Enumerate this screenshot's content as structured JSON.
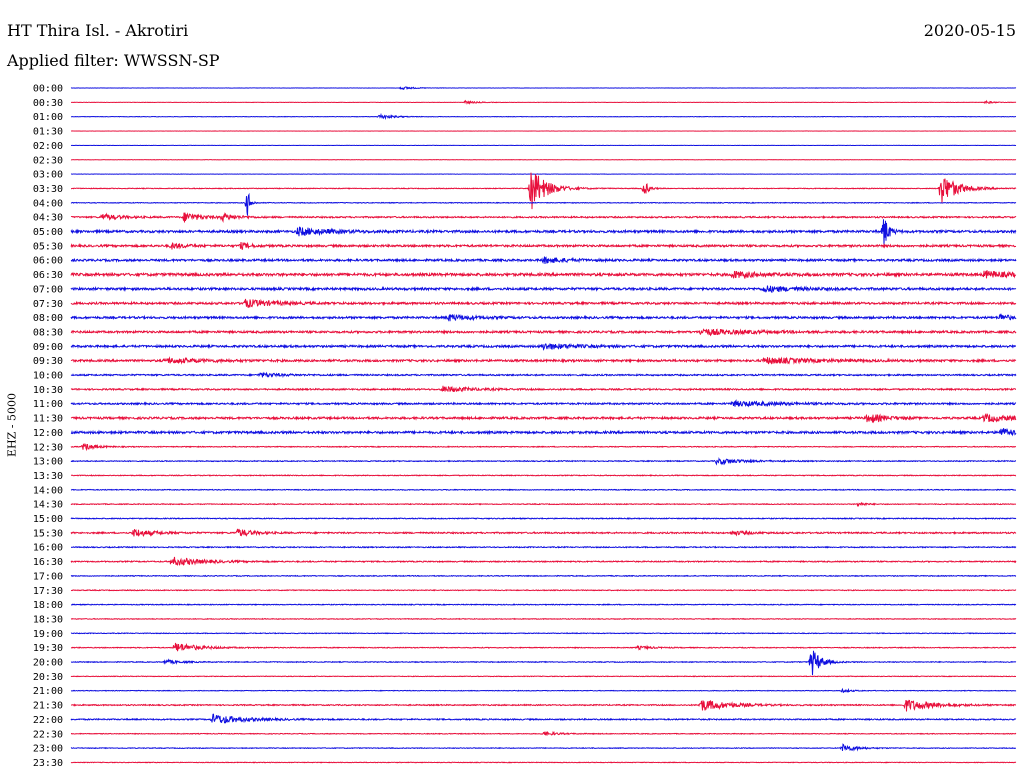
{
  "header": {
    "station": "HT Thira Isl. - Akrotiri",
    "date": "2020-05-15",
    "filter": "Applied filter: WWSSN-SP",
    "channel": "EHZ - 5000"
  },
  "colors": {
    "blue": "#1010e0",
    "red": "#e8103c",
    "background": "#ffffff"
  },
  "chart_data": {
    "type": "line",
    "title": "HT Thira Isl. - Akrotiri",
    "ylabel": "EHZ - 5000",
    "grid": false,
    "legend": "none",
    "xlim": [
      0,
      30
    ],
    "x_unit": "minutes",
    "series": [
      {
        "time": "00:00",
        "color": "blue",
        "noise": 0.15,
        "events": [
          {
            "t": 10.5,
            "amp": 1.5,
            "dur": 0.8
          }
        ]
      },
      {
        "time": "00:30",
        "color": "red",
        "noise": 0.15,
        "events": [
          {
            "t": 12.5,
            "amp": 1.5,
            "dur": 0.8
          },
          {
            "t": 29.0,
            "amp": 1.5,
            "dur": 0.6
          }
        ]
      },
      {
        "time": "01:00",
        "color": "blue",
        "noise": 0.2,
        "events": [
          {
            "t": 9.8,
            "amp": 2.5,
            "dur": 0.9
          }
        ]
      },
      {
        "time": "01:30",
        "color": "red",
        "noise": 0.12,
        "events": []
      },
      {
        "time": "02:00",
        "color": "blue",
        "noise": 0.12,
        "events": []
      },
      {
        "time": "02:30",
        "color": "red",
        "noise": 0.15,
        "events": []
      },
      {
        "time": "03:00",
        "color": "blue",
        "noise": 0.15,
        "events": []
      },
      {
        "time": "03:30",
        "color": "red",
        "noise": 0.35,
        "events": [
          {
            "t": 14.6,
            "amp": 22,
            "dur": 1.0
          },
          {
            "t": 18.2,
            "amp": 8,
            "dur": 0.3
          },
          {
            "t": 27.6,
            "amp": 16,
            "dur": 1.1
          }
        ]
      },
      {
        "time": "04:00",
        "color": "blue",
        "noise": 0.35,
        "events": [
          {
            "t": 5.6,
            "amp": 14,
            "dur": 0.2
          }
        ]
      },
      {
        "time": "04:30",
        "color": "red",
        "noise": 0.7,
        "events": [
          {
            "t": 1.0,
            "amp": 3,
            "dur": 1.2
          },
          {
            "t": 3.6,
            "amp": 5,
            "dur": 1.0
          },
          {
            "t": 4.8,
            "amp": 3.5,
            "dur": 0.9
          }
        ]
      },
      {
        "time": "05:00",
        "color": "blue",
        "noise": 1.1,
        "events": [
          {
            "t": 7.2,
            "amp": 4,
            "dur": 2.0
          },
          {
            "t": 25.8,
            "amp": 18,
            "dur": 0.3
          }
        ]
      },
      {
        "time": "05:30",
        "color": "red",
        "noise": 1.0,
        "events": [
          {
            "t": 3.2,
            "amp": 3,
            "dur": 0.8
          },
          {
            "t": 5.4,
            "amp": 3,
            "dur": 0.6
          }
        ]
      },
      {
        "time": "06:00",
        "color": "blue",
        "noise": 1.0,
        "events": [
          {
            "t": 15.0,
            "amp": 3,
            "dur": 1.5
          }
        ]
      },
      {
        "time": "06:30",
        "color": "red",
        "noise": 1.3,
        "events": [
          {
            "t": 21.0,
            "amp": 3,
            "dur": 1.8
          },
          {
            "t": 29.0,
            "amp": 3.5,
            "dur": 1.5
          }
        ]
      },
      {
        "time": "07:00",
        "color": "blue",
        "noise": 1.1,
        "events": [
          {
            "t": 22.0,
            "amp": 3,
            "dur": 2.0
          }
        ]
      },
      {
        "time": "07:30",
        "color": "red",
        "noise": 1.0,
        "events": [
          {
            "t": 5.5,
            "amp": 4,
            "dur": 1.8
          }
        ]
      },
      {
        "time": "08:00",
        "color": "blue",
        "noise": 1.0,
        "events": [
          {
            "t": 12.0,
            "amp": 3,
            "dur": 1.5
          },
          {
            "t": 29.5,
            "amp": 3.5,
            "dur": 0.7
          }
        ]
      },
      {
        "time": "08:30",
        "color": "red",
        "noise": 1.0,
        "events": [
          {
            "t": 20.0,
            "amp": 3,
            "dur": 3.0
          }
        ]
      },
      {
        "time": "09:00",
        "color": "blue",
        "noise": 1.0,
        "events": [
          {
            "t": 15.0,
            "amp": 3,
            "dur": 2.0
          }
        ]
      },
      {
        "time": "09:30",
        "color": "red",
        "noise": 1.0,
        "events": [
          {
            "t": 3.0,
            "amp": 2.5,
            "dur": 2.5
          },
          {
            "t": 22.0,
            "amp": 3,
            "dur": 3.0
          }
        ]
      },
      {
        "time": "10:00",
        "color": "blue",
        "noise": 0.7,
        "events": [
          {
            "t": 6.0,
            "amp": 2,
            "dur": 1.5
          }
        ]
      },
      {
        "time": "10:30",
        "color": "red",
        "noise": 0.7,
        "events": [
          {
            "t": 11.8,
            "amp": 3,
            "dur": 1.8
          }
        ]
      },
      {
        "time": "11:00",
        "color": "blue",
        "noise": 0.8,
        "events": [
          {
            "t": 21.0,
            "amp": 2.5,
            "dur": 3.0
          }
        ]
      },
      {
        "time": "11:30",
        "color": "red",
        "noise": 1.0,
        "events": [
          {
            "t": 25.3,
            "amp": 5,
            "dur": 1.0
          },
          {
            "t": 29.0,
            "amp": 4,
            "dur": 1.5
          }
        ]
      },
      {
        "time": "12:00",
        "color": "blue",
        "noise": 1.1,
        "events": [
          {
            "t": 29.5,
            "amp": 4,
            "dur": 1.2
          }
        ]
      },
      {
        "time": "12:30",
        "color": "red",
        "noise": 0.4,
        "events": [
          {
            "t": 0.4,
            "amp": 3.5,
            "dur": 0.8
          }
        ]
      },
      {
        "time": "13:00",
        "color": "blue",
        "noise": 0.45,
        "events": [
          {
            "t": 20.5,
            "amp": 3,
            "dur": 1.8
          }
        ]
      },
      {
        "time": "13:30",
        "color": "red",
        "noise": 0.4,
        "events": []
      },
      {
        "time": "14:00",
        "color": "blue",
        "noise": 0.4,
        "events": []
      },
      {
        "time": "14:30",
        "color": "red",
        "noise": 0.4,
        "events": [
          {
            "t": 25.0,
            "amp": 2,
            "dur": 0.5
          }
        ]
      },
      {
        "time": "15:00",
        "color": "blue",
        "noise": 0.45,
        "events": []
      },
      {
        "time": "15:30",
        "color": "red",
        "noise": 0.7,
        "events": [
          {
            "t": 2.0,
            "amp": 4,
            "dur": 1.2
          },
          {
            "t": 5.3,
            "amp": 4,
            "dur": 1.0
          },
          {
            "t": 21.0,
            "amp": 2,
            "dur": 1.2
          }
        ]
      },
      {
        "time": "16:00",
        "color": "blue",
        "noise": 0.5,
        "events": []
      },
      {
        "time": "16:30",
        "color": "red",
        "noise": 0.55,
        "events": [
          {
            "t": 3.2,
            "amp": 4.5,
            "dur": 2.0
          }
        ]
      },
      {
        "time": "17:00",
        "color": "blue",
        "noise": 0.4,
        "events": []
      },
      {
        "time": "17:30",
        "color": "red",
        "noise": 0.4,
        "events": []
      },
      {
        "time": "18:00",
        "color": "blue",
        "noise": 0.4,
        "events": []
      },
      {
        "time": "18:30",
        "color": "red",
        "noise": 0.35,
        "events": []
      },
      {
        "time": "19:00",
        "color": "blue",
        "noise": 0.35,
        "events": []
      },
      {
        "time": "19:30",
        "color": "red",
        "noise": 0.4,
        "events": [
          {
            "t": 3.3,
            "amp": 5,
            "dur": 1.5
          },
          {
            "t": 18.0,
            "amp": 1.5,
            "dur": 1.0
          }
        ]
      },
      {
        "time": "20:00",
        "color": "blue",
        "noise": 0.4,
        "events": [
          {
            "t": 3.0,
            "amp": 2,
            "dur": 1.0
          },
          {
            "t": 23.5,
            "amp": 15,
            "dur": 0.6
          }
        ]
      },
      {
        "time": "20:30",
        "color": "red",
        "noise": 0.3,
        "events": []
      },
      {
        "time": "21:00",
        "color": "blue",
        "noise": 0.3,
        "events": [
          {
            "t": 24.5,
            "amp": 1.5,
            "dur": 0.6
          }
        ]
      },
      {
        "time": "21:30",
        "color": "red",
        "noise": 0.55,
        "events": [
          {
            "t": 20.0,
            "amp": 6,
            "dur": 1.8
          },
          {
            "t": 26.5,
            "amp": 6,
            "dur": 1.8
          }
        ]
      },
      {
        "time": "22:00",
        "color": "blue",
        "noise": 0.6,
        "events": [
          {
            "t": 4.5,
            "amp": 5,
            "dur": 2.0
          }
        ]
      },
      {
        "time": "22:30",
        "color": "red",
        "noise": 0.35,
        "events": [
          {
            "t": 15.0,
            "amp": 2,
            "dur": 1.0
          }
        ]
      },
      {
        "time": "23:00",
        "color": "blue",
        "noise": 0.35,
        "events": [
          {
            "t": 24.5,
            "amp": 4,
            "dur": 0.9
          }
        ]
      },
      {
        "time": "23:30",
        "color": "red",
        "noise": 0.3,
        "events": []
      }
    ]
  }
}
